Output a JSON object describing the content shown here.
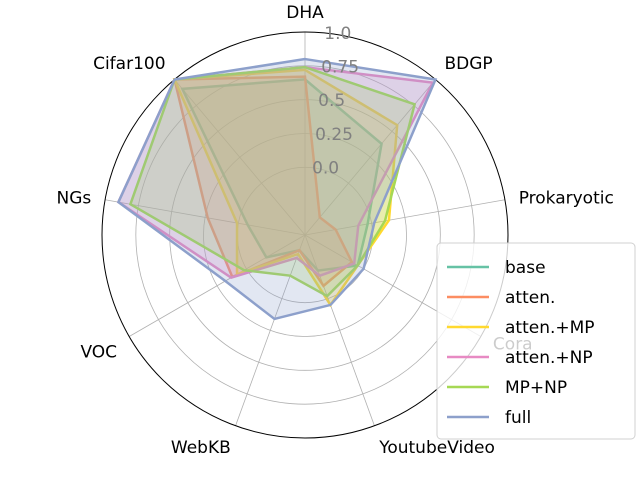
{
  "chart_data": {
    "type": "radar",
    "title": "",
    "axes": [
      "DHA",
      "BDGP",
      "Prokaryotic",
      "Cora",
      "YoutubeVideo",
      "WebKB",
      "VOC",
      "NGs",
      "Cifar100"
    ],
    "rlim": [
      -0.5,
      1.0
    ],
    "rticks": [
      0.0,
      0.25,
      0.5,
      0.75,
      1.0
    ],
    "rtick_labels": [
      "0.0",
      "0.25",
      "0.5",
      "0.75",
      "1.0"
    ],
    "grid": true,
    "legend_position": "lower-right",
    "series": [
      {
        "name": "base",
        "color": "#66c2a5",
        "values": [
          0.65,
          0.38,
          -0.03,
          -0.05,
          -0.22,
          -0.38,
          -0.17,
          -0.07,
          0.91
        ]
      },
      {
        "name": "atten.",
        "color": "#fc8d62",
        "values": [
          0.67,
          -0.33,
          -0.27,
          -0.1,
          -0.1,
          -0.38,
          0.12,
          0.23,
          1.0
        ]
      },
      {
        "name": "atten.+MP",
        "color": "#ffd92f",
        "values": [
          0.72,
          0.56,
          0.13,
          -0.05,
          0.05,
          -0.35,
          0.08,
          0.01,
          1.0
        ]
      },
      {
        "name": "atten.+NP",
        "color": "#e78ac3",
        "values": [
          0.74,
          0.97,
          -0.1,
          -0.08,
          -0.18,
          -0.32,
          0.13,
          0.9,
          1.0
        ]
      },
      {
        "name": "MP+NP",
        "color": "#a6d854",
        "values": [
          0.74,
          0.76,
          0.1,
          -0.05,
          -0.02,
          -0.18,
          0.02,
          0.81,
          1.0
        ]
      },
      {
        "name": "full",
        "color": "#8da0cb",
        "values": [
          0.8,
          1.0,
          0.02,
          0.0,
          0.05,
          0.16,
          0.18,
          0.9,
          1.0
        ]
      }
    ]
  }
}
